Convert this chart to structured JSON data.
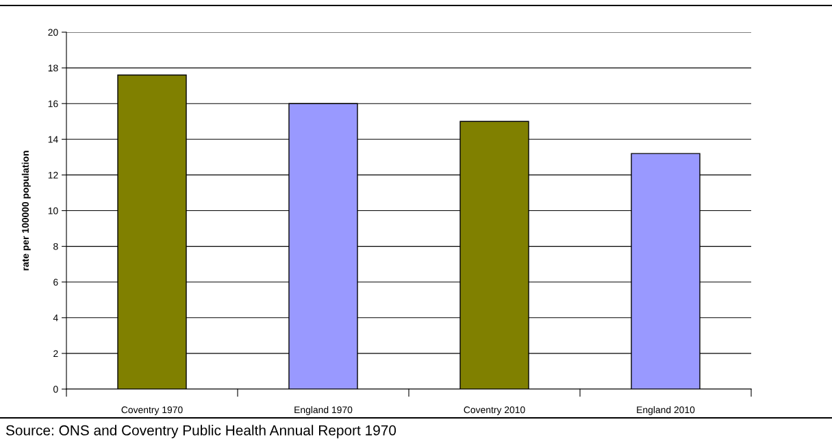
{
  "chart_data": {
    "type": "bar",
    "ylabel": "rate per 100000 population",
    "categories": [
      "Coventry 1970",
      "England 1970",
      "Coventry 2010",
      "England 2010"
    ],
    "values": [
      17.6,
      16.0,
      15.0,
      13.2
    ],
    "colors": [
      "#808000",
      "#9999ff",
      "#808000",
      "#9999ff"
    ],
    "ylim": [
      0,
      20
    ],
    "yticks": [
      0,
      2,
      4,
      6,
      8,
      10,
      12,
      14,
      16,
      18,
      20
    ],
    "grid": "y",
    "annotations": [
      "Source: ONS and Coventry Public Health Annual Report 1970"
    ]
  }
}
